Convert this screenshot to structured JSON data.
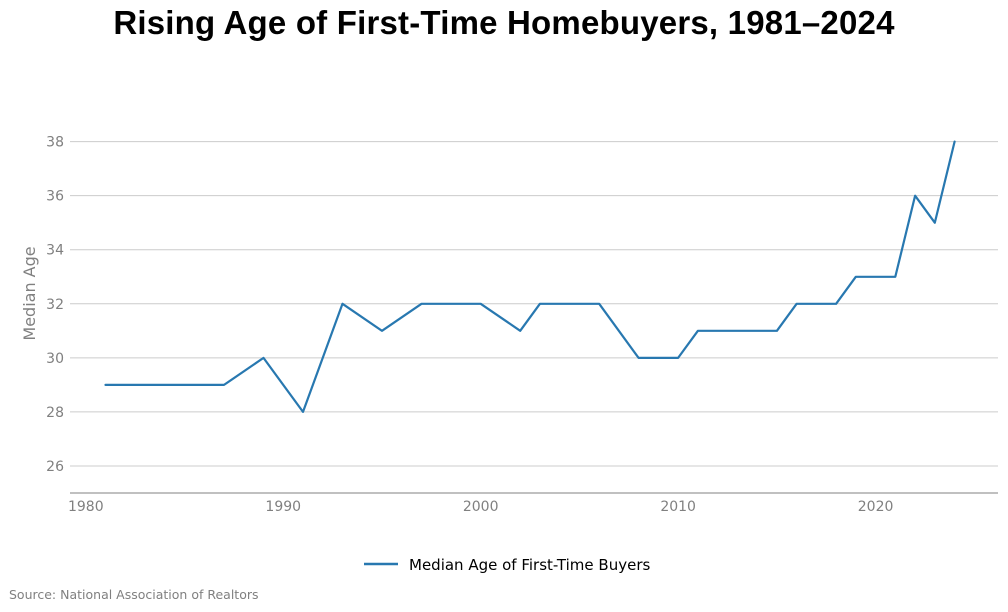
{
  "title": "Rising Age of First-Time Homebuyers, 1981–2024",
  "source": "Source: National Association of Realtors",
  "chart_data": {
    "type": "line",
    "title": "Rising Age of First-Time Homebuyers, 1981–2024",
    "xlabel": "",
    "ylabel": "Median Age",
    "xlim": [
      1979.2,
      2026.2
    ],
    "ylim": [
      25,
      38.8
    ],
    "xticks": [
      1980,
      1990,
      2000,
      2010,
      2020
    ],
    "yticks": [
      26,
      28,
      30,
      32,
      34,
      36,
      38
    ],
    "grid": "horizontal",
    "legend_position": "bottom-center",
    "series": [
      {
        "name": "Median Age of First-Time Buyers",
        "color": "#2878b0",
        "x": [
          1981,
          1985,
          1987,
          1989,
          1991,
          1993,
          1995,
          1997,
          2000,
          2002,
          2003,
          2006,
          2008,
          2010,
          2011,
          2015,
          2016,
          2018,
          2019,
          2021,
          2022,
          2023,
          2024
        ],
        "y": [
          29,
          29,
          29,
          30,
          28,
          32,
          31,
          32,
          32,
          31,
          32,
          32,
          30,
          30,
          31,
          31,
          32,
          32,
          33,
          33,
          36,
          35,
          38
        ]
      }
    ]
  }
}
